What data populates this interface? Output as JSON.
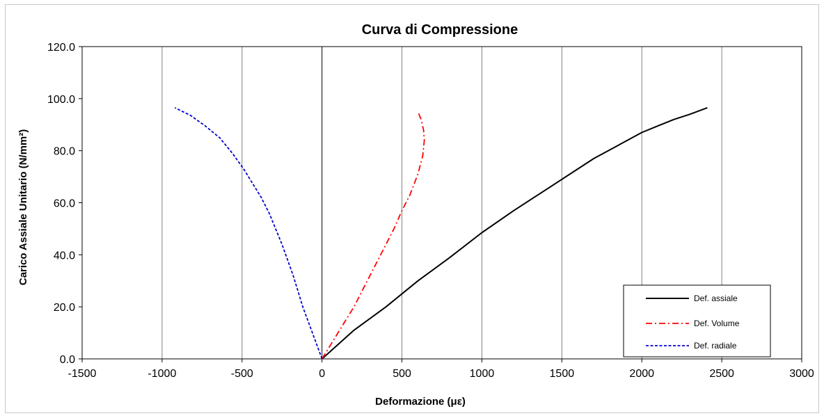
{
  "chart_data": {
    "type": "line",
    "title": "Curva di Compressione",
    "xlabel": "Deformazione (με)",
    "ylabel": "Carico Assiale Unitario (N/mm²)",
    "xlim": [
      -1500,
      3000
    ],
    "ylim": [
      0,
      120
    ],
    "x_ticks": [
      -1500,
      -1000,
      -500,
      0,
      500,
      1000,
      1500,
      2000,
      2500,
      3000
    ],
    "y_ticks": [
      0,
      20,
      40,
      60,
      80,
      100,
      120
    ],
    "x_tick_labels": [
      "-1500",
      "-1000",
      "-500",
      "0",
      "500",
      "1000",
      "1500",
      "2000",
      "2500",
      "3000"
    ],
    "y_tick_labels": [
      "0.0",
      "20.0",
      "40.0",
      "60.0",
      "80.0",
      "100.0",
      "120.0"
    ],
    "grid": "vertical",
    "legend_position": "bottom-right",
    "series": [
      {
        "name": "Def. assiale",
        "color": "#000000",
        "dash": "solid",
        "points": [
          [
            0,
            0
          ],
          [
            200,
            11
          ],
          [
            400,
            20
          ],
          [
            600,
            30
          ],
          [
            800,
            39
          ],
          [
            1000,
            48.5
          ],
          [
            1200,
            57
          ],
          [
            1400,
            65
          ],
          [
            1600,
            73
          ],
          [
            1700,
            77
          ],
          [
            1850,
            82
          ],
          [
            2000,
            87
          ],
          [
            2100,
            89.5
          ],
          [
            2200,
            92
          ],
          [
            2300,
            94
          ],
          [
            2410,
            96.5
          ]
        ]
      },
      {
        "name": "Def. Volume",
        "color": "#ff0000",
        "dash": "dashdot",
        "points": [
          [
            0,
            0
          ],
          [
            50,
            5
          ],
          [
            100,
            10
          ],
          [
            150,
            15
          ],
          [
            200,
            20
          ],
          [
            250,
            26
          ],
          [
            300,
            32
          ],
          [
            350,
            38
          ],
          [
            400,
            44
          ],
          [
            450,
            50
          ],
          [
            500,
            57
          ],
          [
            550,
            63
          ],
          [
            600,
            71
          ],
          [
            630,
            78
          ],
          [
            640,
            84
          ],
          [
            635,
            88
          ],
          [
            620,
            92
          ],
          [
            600,
            95
          ]
        ]
      },
      {
        "name": "Def. radiale",
        "color": "#0000cc",
        "dash": "dashed",
        "points": [
          [
            0,
            0
          ],
          [
            -30,
            5
          ],
          [
            -60,
            10
          ],
          [
            -90,
            15
          ],
          [
            -120,
            20
          ],
          [
            -150,
            26
          ],
          [
            -180,
            32
          ],
          [
            -215,
            38
          ],
          [
            -250,
            44
          ],
          [
            -290,
            50
          ],
          [
            -330,
            56
          ],
          [
            -380,
            62
          ],
          [
            -430,
            67
          ],
          [
            -490,
            73
          ],
          [
            -560,
            79
          ],
          [
            -640,
            85
          ],
          [
            -730,
            89.5
          ],
          [
            -820,
            93.5
          ],
          [
            -920,
            96.5
          ]
        ]
      }
    ]
  }
}
